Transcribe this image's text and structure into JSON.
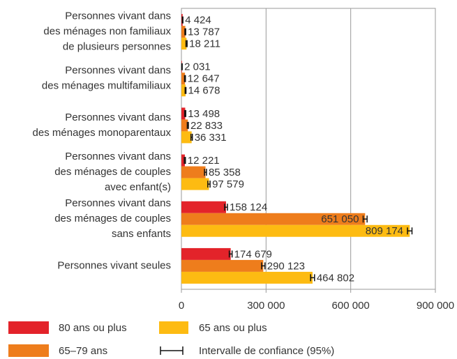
{
  "chart_data": {
    "type": "bar",
    "orientation": "horizontal",
    "categories": [
      [
        "Personnes vivant dans",
        "des ménages non familiaux",
        "de plusieurs personnes"
      ],
      [
        "Personnes vivant dans",
        "des ménages multifamiliaux"
      ],
      [
        "Personnes vivant dans",
        "des ménages monoparentaux"
      ],
      [
        "Personnes vivant dans",
        "des ménages de couples",
        "avec enfant(s)"
      ],
      [
        "Personnes vivant dans",
        "des ménages de couples",
        "sans enfants"
      ],
      [
        "Personnes vivant seules"
      ]
    ],
    "series": [
      {
        "name": "80 ans ou plus",
        "color": "#e3232a",
        "values": [
          4424,
          2031,
          13498,
          12221,
          158124,
          174679
        ],
        "errors": [
          1000,
          800,
          2000,
          2000,
          5000,
          5000
        ],
        "value_labels": [
          "4 424",
          "2 031",
          "13 498",
          "12 221",
          "158 124",
          "174 679"
        ]
      },
      {
        "name": "65–79 ans",
        "color": "#ee7d1c",
        "values": [
          13787,
          12647,
          22833,
          85358,
          651050,
          290123
        ],
        "errors": [
          1500,
          1500,
          2000,
          3500,
          7000,
          6000
        ],
        "value_labels": [
          "13 787",
          "12 647",
          "22 833",
          "85 358",
          "651 050",
          "290 123"
        ]
      },
      {
        "name": "65 ans ou plus",
        "color": "#fdbb12",
        "values": [
          18211,
          14678,
          36331,
          97579,
          809174,
          464802
        ],
        "errors": [
          2000,
          1500,
          2500,
          4000,
          8000,
          7000
        ],
        "value_labels": [
          "18 211",
          "14 678",
          "36 331",
          "97 579",
          "809 174",
          "464 802"
        ]
      }
    ],
    "ci_label": "Intervalle de confiance (95%)",
    "xlim": [
      0,
      900000
    ],
    "xticks": [
      0,
      {
        "value": 300000,
        "label": "300 000"
      },
      {
        "value": 600000,
        "label": "600 000"
      },
      {
        "value": 900000,
        "label": "900 000"
      }
    ],
    "grid": true
  }
}
